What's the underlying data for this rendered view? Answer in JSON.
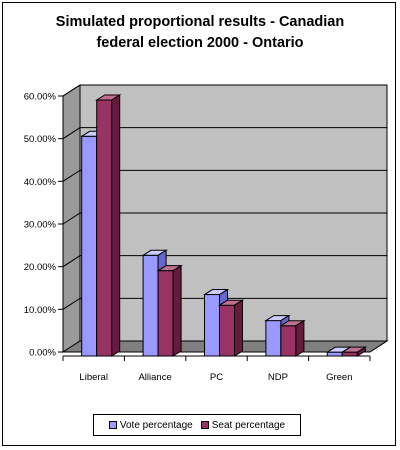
{
  "chart_data": {
    "type": "bar",
    "title_lines": [
      "Simulated proportional results - Canadian",
      "federal election 2000 - Ontario"
    ],
    "categories": [
      "Liberal",
      "Alliance",
      "PC",
      "NDP",
      "Green"
    ],
    "series": [
      {
        "name": "Vote percentage",
        "values": [
          51.5,
          23.6,
          14.4,
          8.3,
          0.9
        ],
        "color": "#9999ff",
        "side_color": "#6666cc",
        "top_color": "#ccccff"
      },
      {
        "name": "Seat percentage",
        "values": [
          60.0,
          20.0,
          11.9,
          7.1,
          0.9
        ],
        "color": "#993366",
        "side_color": "#661a40",
        "top_color": "#c07090"
      }
    ],
    "y_ticks": [
      "0.00%",
      "10.00%",
      "20.00%",
      "30.00%",
      "40.00%",
      "50.00%",
      "60.00%"
    ],
    "ylim": [
      0,
      60
    ],
    "grid": true,
    "plot_background": "#c0c0c0",
    "legend_position": "bottom"
  }
}
